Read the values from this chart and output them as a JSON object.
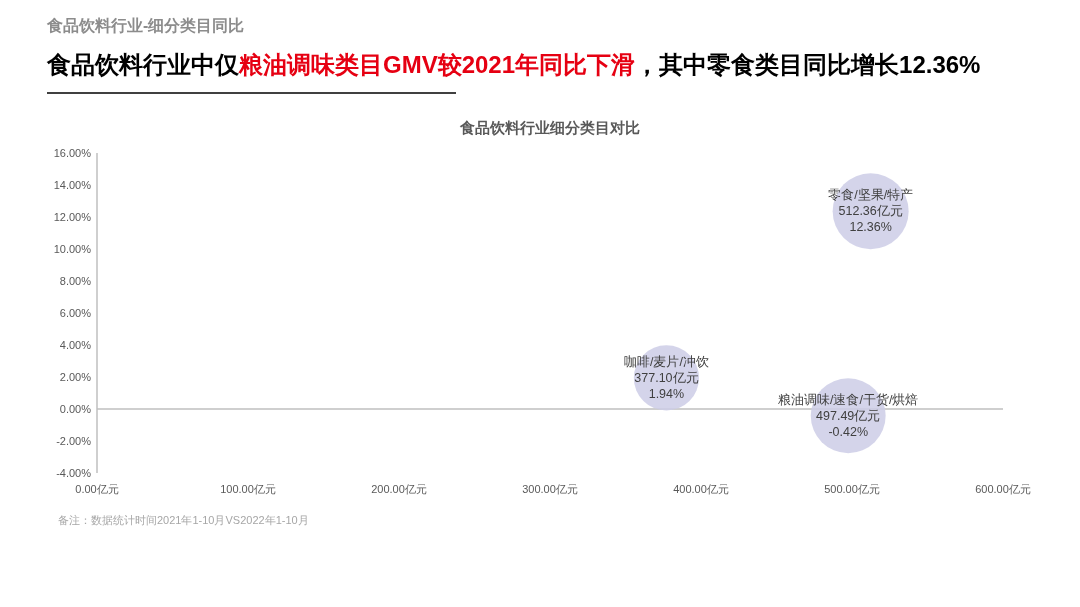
{
  "chart_data": {
    "type": "bubble",
    "title": "食品饮料行业细分类目对比",
    "annotations": [
      "食品饮料行业-细分类目同比",
      "食品饮料行业中仅",
      "粮油调味类目GMV较2021年同比下滑",
      "，其中零食类目同比增长12.36%",
      "备注：数据统计时间2021年1-10月VS2022年1-10月"
    ],
    "xlim": [
      0,
      600
    ],
    "ylim": [
      -4,
      16
    ],
    "xticks": [
      {
        "value": 0,
        "label": "0.00亿元"
      },
      {
        "value": 100,
        "label": "100.00亿元"
      },
      {
        "value": 200,
        "label": "200.00亿元"
      },
      {
        "value": 300,
        "label": "300.00亿元"
      },
      {
        "value": 400,
        "label": "400.00亿元"
      },
      {
        "value": 500,
        "label": "500.00亿元"
      },
      {
        "value": 600,
        "label": "600.00亿元"
      }
    ],
    "yticks": [
      {
        "value": -4,
        "label": "-4.00%"
      },
      {
        "value": -2,
        "label": "-2.00%"
      },
      {
        "value": 0,
        "label": "0.00%"
      },
      {
        "value": 2,
        "label": "2.00%"
      },
      {
        "value": 4,
        "label": "4.00%"
      },
      {
        "value": 6,
        "label": "6.00%"
      },
      {
        "value": 8,
        "label": "8.00%"
      },
      {
        "value": 10,
        "label": "10.00%"
      },
      {
        "value": 12,
        "label": "12.00%"
      },
      {
        "value": 14,
        "label": "14.00%"
      },
      {
        "value": 16,
        "label": "16.00%"
      }
    ],
    "series": [
      {
        "name": "咖啡/麦片/冲饮",
        "color": "#cdcde6",
        "x": [
          377.1
        ],
        "values": [
          1.94
        ],
        "sizes": [
          0.736
        ],
        "value_labels": [
          "377.10亿元\n1.94%"
        ]
      },
      {
        "name": "粮油调味/速食/干货/烘焙",
        "color": "#cdcde6",
        "x": [
          497.49
        ],
        "values": [
          -0.42
        ],
        "sizes": [
          0.971
        ],
        "value_labels": [
          "497.49亿元\n-0.42%"
        ]
      },
      {
        "name": "零食/坚果/特产",
        "color": "#cdcde6",
        "x": [
          512.36
        ],
        "values": [
          12.36
        ],
        "sizes": [
          1
        ],
        "value_labels": [
          "512.36亿元\n12.36%"
        ]
      }
    ]
  }
}
